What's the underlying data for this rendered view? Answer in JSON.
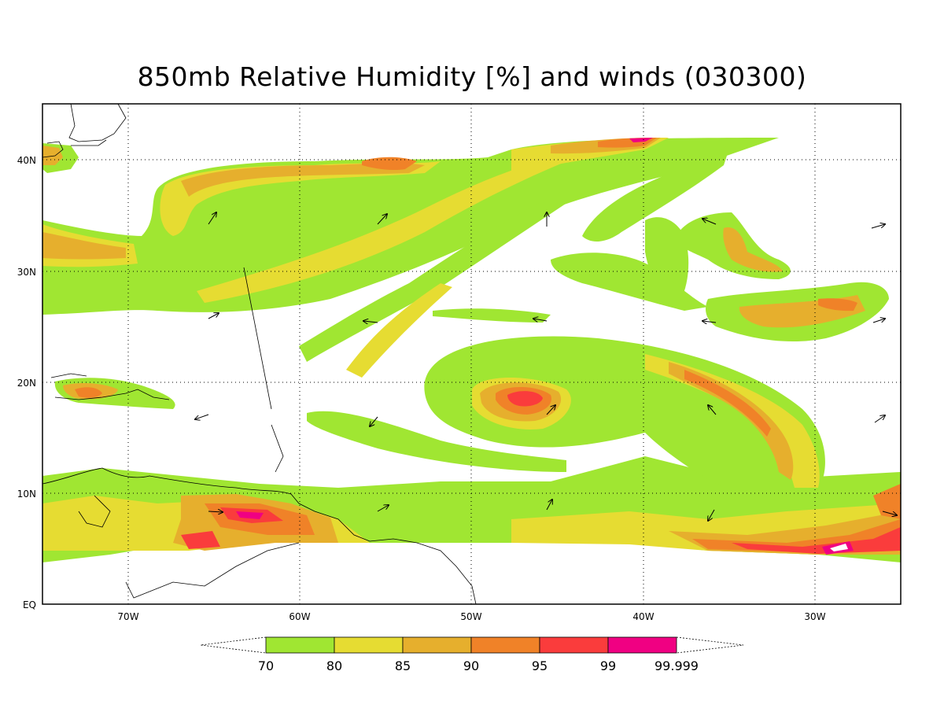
{
  "title": "850mb Relative Humidity [%] and winds (030300)",
  "lon_labels": [
    "70W",
    "60W",
    "50W",
    "40W",
    "30W"
  ],
  "lat_labels": [
    "40N",
    "30N",
    "20N",
    "10N",
    "EQ"
  ],
  "colorbar": {
    "labels": [
      "70",
      "80",
      "85",
      "90",
      "95",
      "99",
      "99.999"
    ],
    "colors": [
      "#a0e632",
      "#e6dc32",
      "#e6af2d",
      "#f08228",
      "#fa3c3c",
      "#f00082"
    ]
  },
  "map": {
    "variable": "850mb Relative Humidity",
    "units": "%",
    "lon_range": [
      "75W",
      "25W"
    ],
    "lat_range": [
      "EQ",
      "45N"
    ],
    "grid": "dotted"
  }
}
